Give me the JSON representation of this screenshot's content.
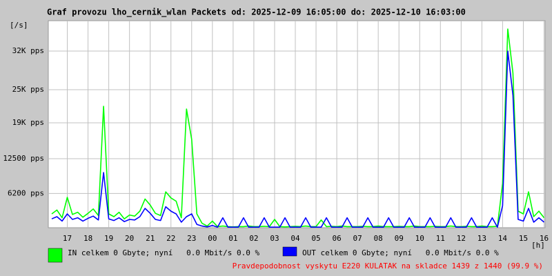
{
  "chart_data": {
    "type": "line",
    "title": "Graf provozu lho_cernik_wlan Packets od: 2025-12-09 16:05:00 do: 2025-12-10 16:03:00",
    "y_label": "[/s]",
    "x_label": "[h]",
    "footer": "Pravdepodobnost vyskytu E220 KULATAK na skladce 1439 z 1440 (99.9 %)",
    "grid": true,
    "xlim": [
      16.0833,
      40.05
    ],
    "ylim": [
      0,
      37500
    ],
    "xticks": [
      17,
      18,
      19,
      20,
      21,
      22,
      23,
      {
        "value": 24,
        "label": "00"
      },
      {
        "value": 25,
        "label": "01"
      },
      {
        "value": 26,
        "label": "02"
      },
      {
        "value": 27,
        "label": "03"
      },
      {
        "value": 28,
        "label": "04"
      },
      {
        "value": 29,
        "label": "05"
      },
      {
        "value": 30,
        "label": "06"
      },
      {
        "value": 31,
        "label": "07"
      },
      {
        "value": 32,
        "label": "08"
      },
      {
        "value": 33,
        "label": "09"
      },
      {
        "value": 34,
        "label": "10"
      },
      {
        "value": 35,
        "label": "11"
      },
      {
        "value": 36,
        "label": "12"
      },
      {
        "value": 37,
        "label": "13"
      },
      {
        "value": 38,
        "label": "14"
      },
      {
        "value": 39,
        "label": "15"
      },
      {
        "value": 40,
        "label": "16"
      }
    ],
    "yticks": [
      {
        "value": 6200,
        "label": "6200 pps"
      },
      {
        "value": 12500,
        "label": "12500 pps"
      },
      {
        "value": 19000,
        "label": "19K pps"
      },
      {
        "value": 25000,
        "label": "25K pps"
      },
      {
        "value": 32000,
        "label": "32K pps"
      }
    ],
    "x": [
      16.25,
      16.5,
      16.75,
      17,
      17.25,
      17.5,
      17.75,
      18,
      18.25,
      18.5,
      18.75,
      19,
      19.25,
      19.5,
      19.75,
      20,
      20.25,
      20.5,
      20.75,
      21,
      21.25,
      21.5,
      21.75,
      22,
      22.25,
      22.5,
      22.75,
      23,
      23.25,
      23.5,
      23.75,
      24,
      24.25,
      24.5,
      24.75,
      25,
      25.25,
      25.5,
      25.75,
      26,
      26.25,
      26.5,
      26.75,
      27,
      27.25,
      27.5,
      27.75,
      28,
      28.25,
      28.5,
      28.75,
      29,
      29.25,
      29.5,
      29.75,
      30,
      30.25,
      30.5,
      30.75,
      31,
      31.25,
      31.5,
      31.75,
      32,
      32.25,
      32.5,
      32.75,
      33,
      33.25,
      33.5,
      33.75,
      34,
      34.25,
      34.5,
      34.75,
      35,
      35.25,
      35.5,
      35.75,
      36,
      36.25,
      36.5,
      36.75,
      37,
      37.25,
      37.5,
      37.75,
      38,
      38.25,
      38.5,
      38.75,
      39,
      39.25,
      39.5,
      39.75,
      40
    ],
    "series": [
      {
        "name": "IN celkem 0 Gbyte; nyní   0.0 Mbit/s 0.0 %",
        "color": "#00ff00",
        "values": [
          2500,
          3200,
          1800,
          5500,
          2400,
          2800,
          1900,
          2600,
          3400,
          2200,
          22000,
          2500,
          2000,
          2800,
          1600,
          2300,
          2100,
          3000,
          5200,
          4100,
          2600,
          2200,
          6500,
          5400,
          4800,
          1800,
          21500,
          16000,
          2500,
          800,
          300,
          1200,
          200,
          300,
          200,
          150,
          200,
          200,
          300,
          200,
          200,
          250,
          200,
          1500,
          200,
          150,
          200,
          250,
          200,
          300,
          200,
          200,
          1400,
          200,
          250,
          200,
          300,
          200,
          200,
          200,
          250,
          200,
          200,
          300,
          200,
          200,
          200,
          250,
          200,
          200,
          300,
          200,
          200,
          200,
          250,
          200,
          200,
          300,
          200,
          200,
          250,
          200,
          200,
          300,
          200,
          200,
          250,
          8000,
          36000,
          28000,
          3000,
          2500,
          6500,
          2000,
          3000,
          1800
        ]
      },
      {
        "name": "OUT celkem 0 Gbyte; nyní   0.0 Mbit/s 0.0 %",
        "color": "#0000ff",
        "values": [
          1600,
          2000,
          1200,
          2500,
          1500,
          1800,
          1200,
          1700,
          2100,
          1400,
          10000,
          1600,
          1300,
          1800,
          1100,
          1500,
          1400,
          2000,
          3500,
          2600,
          1500,
          1300,
          3800,
          3000,
          2500,
          1000,
          2000,
          2500,
          600,
          300,
          150,
          400,
          100,
          1800,
          100,
          100,
          100,
          1800,
          100,
          100,
          100,
          1800,
          100,
          100,
          100,
          1800,
          100,
          100,
          100,
          1800,
          100,
          100,
          100,
          1800,
          100,
          100,
          100,
          1800,
          100,
          100,
          100,
          1800,
          100,
          100,
          100,
          1800,
          100,
          100,
          100,
          1800,
          100,
          100,
          100,
          1800,
          100,
          100,
          100,
          1800,
          100,
          100,
          100,
          1800,
          100,
          100,
          100,
          1800,
          100,
          4000,
          32000,
          24000,
          1500,
          1200,
          3500,
          1000,
          1800,
          1000
        ]
      }
    ]
  }
}
